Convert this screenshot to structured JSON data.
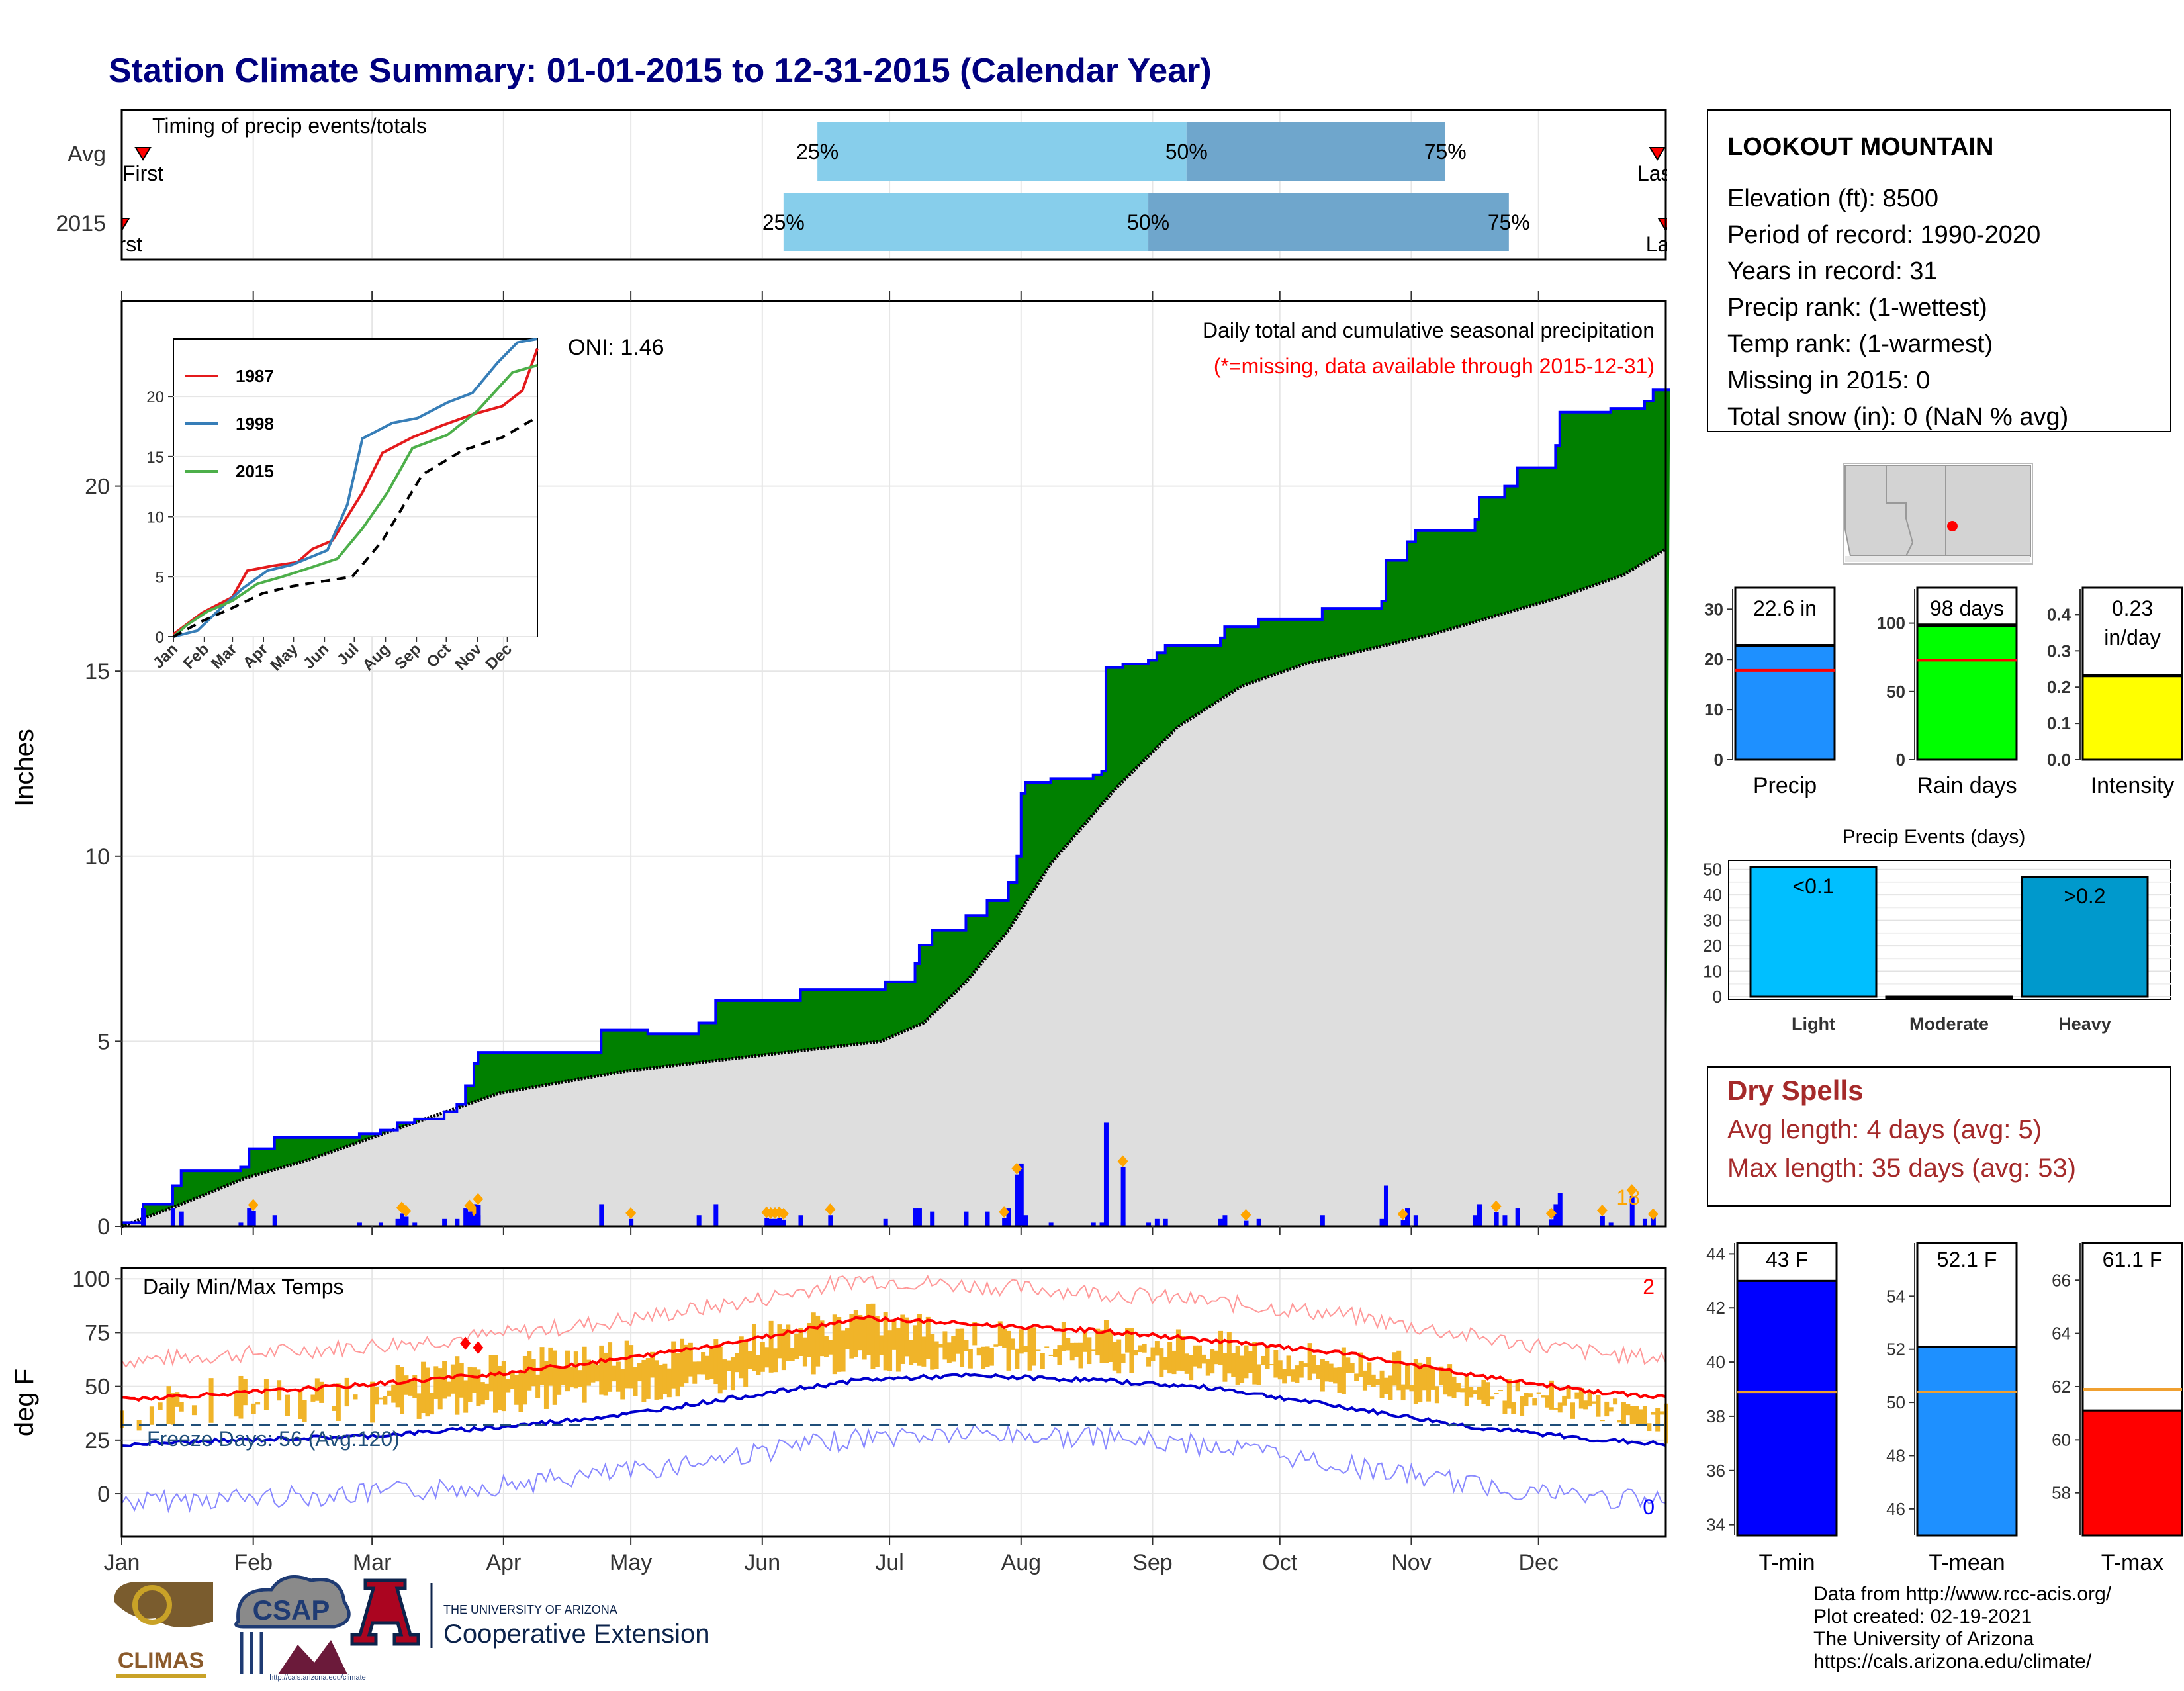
{
  "title": "Station Climate Summary: 01-01-2015 to 12-31-2015 (Calendar Year)",
  "timing_panel": {
    "label": "Timing of precip events/totals",
    "rows": [
      {
        "name": "Avg",
        "first_label": "First",
        "last_label": "Last",
        "q25_label": "25%",
        "q50_label": "50%",
        "q75_label": "75%",
        "first_day": 6,
        "q25_day": 165,
        "q50_day": 252,
        "q75_day": 313,
        "last_day": 363
      },
      {
        "name": "2015",
        "first_label": "First",
        "last_label": "Last",
        "q25_label": "25%",
        "q50_label": "50%",
        "q75_label": "75%",
        "first_day": 1,
        "q25_day": 157,
        "q50_day": 243,
        "q75_day": 328,
        "last_day": 365
      }
    ]
  },
  "month_labels": [
    "Jan",
    "Feb",
    "Mar",
    "Apr",
    "May",
    "Jun",
    "Jul",
    "Aug",
    "Sep",
    "Oct",
    "Nov",
    "Dec"
  ],
  "precip_panel": {
    "ylabel": "Inches",
    "yticks": [
      "0",
      "5",
      "10",
      "15",
      "20"
    ],
    "caption": "Daily total and cumulative seasonal precipitation",
    "missing_note": "(*=missing, data available through 2015-12-31)",
    "oni_label": "ONI: 1.46",
    "heavy_count": "18",
    "ymax": 25
  },
  "inset": {
    "legend": [
      "1987",
      "1998",
      "2015"
    ],
    "colors": [
      "#e41a1c",
      "#377eb8",
      "#4daf4a"
    ],
    "yticks": [
      "0",
      "5",
      "10",
      "15",
      "20"
    ],
    "xticks": [
      "Jan",
      "Feb",
      "Mar",
      "Apr",
      "May",
      "Jun",
      "Jul",
      "Aug",
      "Sep",
      "Oct",
      "Nov",
      "Dec"
    ]
  },
  "temp_panel": {
    "ylabel": "deg F",
    "label": "Daily Min/Max Temps",
    "yticks": [
      "0",
      "25",
      "50",
      "75",
      "100"
    ],
    "freeze_label": "Freeze Days: 56 (Avg:120)",
    "record_high_count": "2",
    "record_low_count": "0"
  },
  "station": {
    "name": "LOOKOUT MOUNTAIN",
    "lines": [
      "Elevation (ft): 8500",
      "Period of record: 1990-2020",
      "Years in record: 31",
      "Precip rank:  (1-wettest)",
      "Temp rank:  (1-warmest)",
      "Missing in 2015: 0",
      "Total snow (in): 0 (NaN % avg)"
    ]
  },
  "summary_bars": [
    {
      "name": "Precip",
      "value_label": "22.6 in",
      "value": 22.6,
      "avg": 17.8,
      "ymax": 34,
      "yticks": [
        "0",
        "10",
        "20",
        "30"
      ],
      "tick_vals": [
        0,
        10,
        20,
        30
      ],
      "color": "#1e90ff"
    },
    {
      "name": "Rain days",
      "value_label": "98 days",
      "value": 98,
      "avg": 73,
      "ymax": 125,
      "yticks": [
        "0",
        "50",
        "100"
      ],
      "tick_vals": [
        0,
        50,
        100
      ],
      "color": "#00ff00"
    },
    {
      "name": "Intensity",
      "value_label": "0.23 in/day",
      "value": 0.23,
      "avg": 0.24,
      "ymax": 0.47,
      "yticks": [
        "0.0",
        "0.1",
        "0.2",
        "0.3",
        "0.4"
      ],
      "tick_vals": [
        0,
        0.1,
        0.2,
        0.3,
        0.4
      ],
      "color": "#ffff00"
    }
  ],
  "precip_events": {
    "title": "Precip Events (days)",
    "yticks": [
      "0",
      "10",
      "20",
      "30",
      "40",
      "50"
    ],
    "categories": [
      "Light",
      "Moderate",
      "Heavy"
    ],
    "values": [
      51,
      0,
      47
    ],
    "bar_labels": [
      "<0.1",
      "",
      ">0.2"
    ],
    "colors": [
      "#00bfff",
      "#00bfff",
      "#0099cc"
    ]
  },
  "dry_spells": {
    "title": "Dry Spells",
    "avg_line": "Avg length: 4 days (avg: 5)",
    "max_line": "Max length: 35 days (avg: 53)"
  },
  "temp_bars": [
    {
      "name": "T-min",
      "value_label": "43 F",
      "value": 43,
      "avg": 38.9,
      "ymin": 33.6,
      "ymax": 44.4,
      "yticks": [
        "34",
        "36",
        "38",
        "40",
        "42",
        "44"
      ],
      "tick_vals": [
        34,
        36,
        38,
        40,
        42,
        44
      ],
      "color": "#0000ff"
    },
    {
      "name": "T-mean",
      "value_label": "52.1 F",
      "value": 52.1,
      "avg": 50.4,
      "ymin": 45,
      "ymax": 56,
      "yticks": [
        "46",
        "48",
        "50",
        "52",
        "54"
      ],
      "tick_vals": [
        46,
        48,
        50,
        52,
        54
      ],
      "color": "#1e90ff"
    },
    {
      "name": "T-max",
      "value_label": "61.1 F",
      "value": 61.1,
      "avg": 61.9,
      "ymin": 56.4,
      "ymax": 67.4,
      "yticks": [
        "58",
        "60",
        "62",
        "64",
        "66"
      ],
      "tick_vals": [
        58,
        60,
        62,
        64,
        66
      ],
      "color": "#ff0000"
    }
  ],
  "footer": {
    "credits": [
      "Data from http://www.rcc-acis.org/",
      "Plot created: 02-19-2021",
      "The University of Arizona",
      "https://cals.arizona.edu/climate/"
    ],
    "logo_climas": "CLIMAS",
    "logo_csap": "CSAP",
    "logo_ua_small": "THE UNIVERSITY OF ARIZONA",
    "logo_ua_big": "Cooperative Extension"
  },
  "chart_data": {
    "type": "area",
    "title": "Station Climate Summary: 01-01-2015 to 12-31-2015 (Calendar Year)",
    "ylabel": "Inches",
    "ylim": [
      0,
      25
    ],
    "xlim_days": [
      1,
      365
    ],
    "cum_2015": [
      [
        1,
        0.1
      ],
      [
        6,
        0.6
      ],
      [
        12,
        0.6
      ],
      [
        13,
        1.1
      ],
      [
        15,
        1.5
      ],
      [
        29,
        1.6
      ],
      [
        31,
        2.1
      ],
      [
        37,
        2.4
      ],
      [
        56,
        2.4
      ],
      [
        57,
        2.5
      ],
      [
        62,
        2.6
      ],
      [
        66,
        2.8
      ],
      [
        70,
        2.9
      ],
      [
        77,
        3.1
      ],
      [
        80,
        3.3
      ],
      [
        82,
        3.8
      ],
      [
        84,
        4.4
      ],
      [
        85,
        4.7
      ],
      [
        113,
        4.7
      ],
      [
        114,
        5.3
      ],
      [
        124,
        5.3
      ],
      [
        125,
        5.2
      ],
      [
        136,
        5.2
      ],
      [
        137,
        5.5
      ],
      [
        141,
        6.1
      ],
      [
        160,
        6.1
      ],
      [
        161,
        6.4
      ],
      [
        180,
        6.4
      ],
      [
        181,
        6.6
      ],
      [
        188,
        7.1
      ],
      [
        189,
        7.6
      ],
      [
        192,
        8.0
      ],
      [
        200,
        8.4
      ],
      [
        205,
        8.8
      ],
      [
        210,
        9.3
      ],
      [
        212,
        10.0
      ],
      [
        213,
        11.7
      ],
      [
        214,
        12.0
      ],
      [
        220,
        12.1
      ],
      [
        230,
        12.2
      ],
      [
        232,
        12.3
      ],
      [
        233,
        15.1
      ],
      [
        237,
        15.2
      ],
      [
        243,
        15.3
      ],
      [
        245,
        15.5
      ],
      [
        247,
        15.7
      ],
      [
        260,
        15.9
      ],
      [
        261,
        16.2
      ],
      [
        268,
        16.2
      ],
      [
        269,
        16.4
      ],
      [
        283,
        16.4
      ],
      [
        284,
        16.7
      ],
      [
        298,
        16.9
      ],
      [
        299,
        18.0
      ],
      [
        304,
        18.5
      ],
      [
        306,
        18.8
      ],
      [
        320,
        19.1
      ],
      [
        321,
        19.7
      ],
      [
        327,
        20.0
      ],
      [
        330,
        20.5
      ],
      [
        339,
        21.1
      ],
      [
        340,
        22.0
      ],
      [
        352,
        22.1
      ],
      [
        360,
        22.3
      ],
      [
        362,
        22.6
      ],
      [
        365,
        22.6
      ]
    ],
    "cum_avg": [
      [
        1,
        0.0
      ],
      [
        15,
        0.6
      ],
      [
        30,
        1.3
      ],
      [
        45,
        1.8
      ],
      [
        60,
        2.4
      ],
      [
        75,
        3.0
      ],
      [
        90,
        3.6
      ],
      [
        105,
        3.9
      ],
      [
        120,
        4.2
      ],
      [
        135,
        4.4
      ],
      [
        150,
        4.6
      ],
      [
        165,
        4.8
      ],
      [
        180,
        5.0
      ],
      [
        190,
        5.5
      ],
      [
        200,
        6.6
      ],
      [
        210,
        8.0
      ],
      [
        220,
        9.8
      ],
      [
        235,
        11.8
      ],
      [
        250,
        13.5
      ],
      [
        265,
        14.6
      ],
      [
        280,
        15.2
      ],
      [
        295,
        15.6
      ],
      [
        310,
        16.0
      ],
      [
        325,
        16.5
      ],
      [
        340,
        17.0
      ],
      [
        355,
        17.6
      ],
      [
        365,
        18.3
      ]
    ],
    "heavy_days_2015": [
      [
        32,
        0.42
      ],
      [
        67,
        0.35
      ],
      [
        68,
        0.26
      ],
      [
        84,
        0.28
      ],
      [
        83,
        0.4
      ],
      [
        85,
        0.58
      ],
      [
        121,
        0.2
      ],
      [
        153,
        0.22
      ],
      [
        154,
        0.2
      ],
      [
        155,
        0.2
      ],
      [
        156,
        0.22
      ],
      [
        157,
        0.18
      ],
      [
        168,
        0.3
      ],
      [
        209,
        0.23
      ],
      [
        212,
        1.4
      ],
      [
        237,
        1.6
      ],
      [
        266,
        0.15
      ],
      [
        303,
        0.17
      ],
      [
        325,
        0.38
      ],
      [
        338,
        0.19
      ],
      [
        350,
        0.27
      ],
      [
        357,
        0.82
      ],
      [
        362,
        0.17
      ]
    ],
    "temp_2015": {
      "tmax_approx": [
        [
          1,
          38
        ],
        [
          15,
          45
        ],
        [
          30,
          48
        ],
        [
          45,
          46
        ],
        [
          60,
          52
        ],
        [
          75,
          55
        ],
        [
          90,
          60
        ],
        [
          105,
          63
        ],
        [
          120,
          66
        ],
        [
          135,
          65
        ],
        [
          150,
          72
        ],
        [
          165,
          78
        ],
        [
          175,
          82
        ],
        [
          185,
          78
        ],
        [
          200,
          74
        ],
        [
          215,
          72
        ],
        [
          230,
          74
        ],
        [
          245,
          71
        ],
        [
          260,
          68
        ],
        [
          275,
          64
        ],
        [
          290,
          62
        ],
        [
          305,
          58
        ],
        [
          320,
          54
        ],
        [
          335,
          46
        ],
        [
          350,
          42
        ],
        [
          365,
          30
        ]
      ],
      "tmin_approx": [
        [
          1,
          22
        ],
        [
          15,
          26
        ],
        [
          30,
          28
        ],
        [
          45,
          27
        ],
        [
          60,
          27
        ],
        [
          75,
          29
        ],
        [
          90,
          31
        ],
        [
          105,
          34
        ],
        [
          120,
          36
        ],
        [
          135,
          37
        ],
        [
          150,
          43
        ],
        [
          165,
          49
        ],
        [
          180,
          50
        ],
        [
          195,
          52
        ],
        [
          210,
          51
        ],
        [
          225,
          52
        ],
        [
          240,
          49
        ],
        [
          255,
          45
        ],
        [
          270,
          43
        ],
        [
          285,
          40
        ],
        [
          300,
          36
        ],
        [
          315,
          34
        ],
        [
          330,
          30
        ],
        [
          345,
          27
        ],
        [
          365,
          25
        ]
      ],
      "normal_max": [
        [
          1,
          44
        ],
        [
          30,
          47
        ],
        [
          60,
          51
        ],
        [
          90,
          56
        ],
        [
          120,
          63
        ],
        [
          150,
          72
        ],
        [
          175,
          82
        ],
        [
          200,
          79
        ],
        [
          230,
          76
        ],
        [
          260,
          71
        ],
        [
          290,
          65
        ],
        [
          320,
          55
        ],
        [
          350,
          47
        ],
        [
          365,
          45
        ]
      ],
      "normal_min": [
        [
          1,
          23
        ],
        [
          30,
          25
        ],
        [
          60,
          27
        ],
        [
          90,
          31
        ],
        [
          120,
          37
        ],
        [
          150,
          46
        ],
        [
          175,
          53
        ],
        [
          200,
          55
        ],
        [
          230,
          53
        ],
        [
          260,
          49
        ],
        [
          290,
          40
        ],
        [
          320,
          31
        ],
        [
          350,
          25
        ],
        [
          365,
          23
        ]
      ],
      "freezing_line": 32
    },
    "inset_series": {
      "1987": [
        [
          1,
          0.2
        ],
        [
          30,
          2.0
        ],
        [
          60,
          3.3
        ],
        [
          75,
          5.5
        ],
        [
          100,
          5.9
        ],
        [
          125,
          6.2
        ],
        [
          140,
          7.3
        ],
        [
          160,
          8.0
        ],
        [
          175,
          10.0
        ],
        [
          190,
          12.0
        ],
        [
          210,
          15.3
        ],
        [
          240,
          16.6
        ],
        [
          270,
          17.6
        ],
        [
          300,
          18.5
        ],
        [
          330,
          19.2
        ],
        [
          350,
          20.5
        ],
        [
          365,
          24.0
        ]
      ],
      "1998": [
        [
          1,
          0.0
        ],
        [
          25,
          0.5
        ],
        [
          50,
          2.5
        ],
        [
          70,
          4.0
        ],
        [
          95,
          5.5
        ],
        [
          120,
          6.0
        ],
        [
          155,
          7.2
        ],
        [
          175,
          11.0
        ],
        [
          190,
          16.5
        ],
        [
          220,
          17.8
        ],
        [
          245,
          18.2
        ],
        [
          275,
          19.5
        ],
        [
          300,
          20.3
        ],
        [
          325,
          22.8
        ],
        [
          345,
          24.5
        ],
        [
          365,
          24.8
        ]
      ],
      "2015": [
        [
          1,
          0.0
        ],
        [
          15,
          1.0
        ],
        [
          35,
          2.1
        ],
        [
          60,
          3.0
        ],
        [
          85,
          4.4
        ],
        [
          110,
          5.0
        ],
        [
          140,
          5.8
        ],
        [
          165,
          6.5
        ],
        [
          190,
          9.0
        ],
        [
          215,
          12.0
        ],
        [
          240,
          15.7
        ],
        [
          275,
          16.8
        ],
        [
          305,
          18.8
        ],
        [
          340,
          22.0
        ],
        [
          365,
          22.6
        ]
      ],
      "avg": [
        [
          1,
          0.0
        ],
        [
          30,
          1.3
        ],
        [
          60,
          2.4
        ],
        [
          90,
          3.6
        ],
        [
          120,
          4.2
        ],
        [
          150,
          4.6
        ],
        [
          180,
          5.0
        ],
        [
          210,
          8.0
        ],
        [
          250,
          13.5
        ],
        [
          290,
          15.5
        ],
        [
          330,
          16.6
        ],
        [
          365,
          18.3
        ]
      ]
    }
  }
}
